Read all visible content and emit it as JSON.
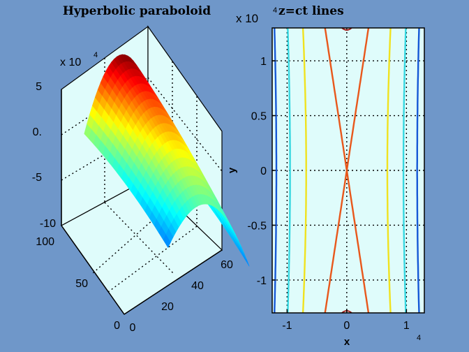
{
  "chart_data": [
    {
      "type": "surface",
      "title": "Hyperbolic paraboloid",
      "z_multiplier": "x 10",
      "z_exponent": "4",
      "zticks": [
        "5",
        "0.",
        "-5",
        "-10"
      ],
      "yticks": [
        "100",
        "50",
        "0"
      ],
      "xticks": [
        "0",
        "20",
        "40",
        "60"
      ],
      "xlim": [
        0,
        60
      ],
      "ylim": [
        0,
        100
      ],
      "zlim": [
        -10,
        5
      ],
      "grid": true,
      "colormap": "jet"
    },
    {
      "type": "line",
      "title": "z=ct lines",
      "y_multiplier": "x 10",
      "y_exponent": "4",
      "x_exponent": "4",
      "xlabel": "x",
      "ylabel": "y",
      "xticks": [
        "-1",
        "0",
        "1"
      ],
      "yticks": [
        "1",
        "0.5",
        "0",
        "-0.5",
        "-1"
      ],
      "xlim": [
        -1.25,
        1.3
      ],
      "ylim": [
        -1.3,
        1.3
      ],
      "grid": true,
      "series": [
        {
          "color": "#e8571b",
          "a": 0.0
        },
        {
          "color": "#f0e21f",
          "a": 0.68
        },
        {
          "color": "#36d7e0",
          "a": 0.95
        },
        {
          "color": "#1558d6",
          "a": 1.18
        }
      ]
    }
  ],
  "colors": {
    "background": "#6f97c9",
    "plot_background": "#dffcfb"
  }
}
